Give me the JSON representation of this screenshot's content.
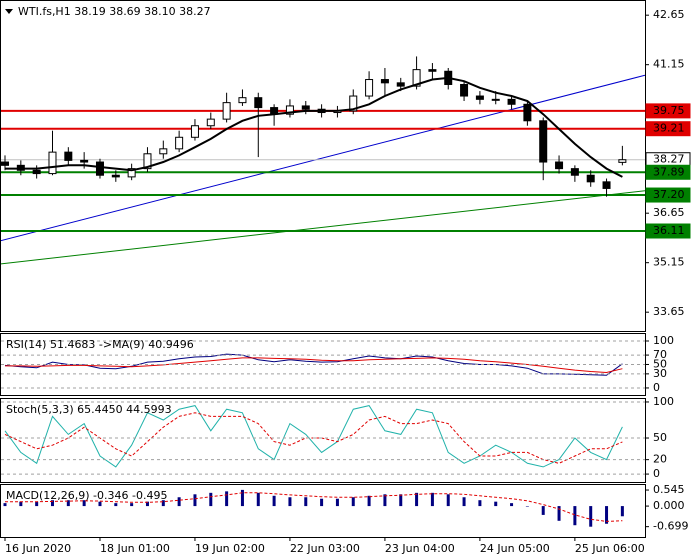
{
  "chart_data": [
    {
      "type": "candlestick",
      "title": "WTI.fs,H1  38.19 38.69 38.10 38.27",
      "categories": [
        "16 Jun 2020",
        null,
        null,
        null,
        null,
        null,
        "18 Jun 01:00",
        null,
        null,
        null,
        null,
        null,
        "19 Jun 02:00",
        null,
        null,
        null,
        null,
        null,
        "22 Jun 03:00",
        null,
        null,
        null,
        null,
        null,
        "23 Jun 04:00",
        null,
        null,
        null,
        null,
        null,
        "24 Jun 05:00",
        null,
        null,
        null,
        null,
        null,
        "25 Jun 06:00",
        null,
        null,
        null
      ],
      "open": [
        38.2,
        38.1,
        37.95,
        37.85,
        38.5,
        38.25,
        38.2,
        37.8,
        37.75,
        38.0,
        38.45,
        38.6,
        38.95,
        39.3,
        39.5,
        40.0,
        40.15,
        39.85,
        39.65,
        39.9,
        39.8,
        39.7,
        39.75,
        40.2,
        40.7,
        40.6,
        40.5,
        41.0,
        40.95,
        40.55,
        40.2,
        40.1,
        40.1,
        39.95,
        39.45,
        38.2,
        38.0,
        37.8,
        37.6,
        38.19
      ],
      "high": [
        38.4,
        38.25,
        38.1,
        39.15,
        38.65,
        38.5,
        38.3,
        37.95,
        38.15,
        38.65,
        38.85,
        39.15,
        39.5,
        39.7,
        40.3,
        40.4,
        40.3,
        39.95,
        40.1,
        40.05,
        39.95,
        39.9,
        40.4,
        40.95,
        41.05,
        40.75,
        41.4,
        41.2,
        41.05,
        40.65,
        40.35,
        40.35,
        40.2,
        40.05,
        39.55,
        38.4,
        38.1,
        37.95,
        37.7,
        38.69
      ],
      "low": [
        37.95,
        37.8,
        37.7,
        37.8,
        38.1,
        38.0,
        37.7,
        37.6,
        37.65,
        37.9,
        38.3,
        38.5,
        38.85,
        39.2,
        39.4,
        39.9,
        38.35,
        39.3,
        39.55,
        39.65,
        39.55,
        39.55,
        39.65,
        40.1,
        40.2,
        40.35,
        40.4,
        40.7,
        40.4,
        40.05,
        39.95,
        39.95,
        39.8,
        39.3,
        37.65,
        37.85,
        37.6,
        37.45,
        37.15,
        38.1
      ],
      "close": [
        38.1,
        37.95,
        37.85,
        38.5,
        38.25,
        38.2,
        37.8,
        37.75,
        38.0,
        38.45,
        38.6,
        38.95,
        39.3,
        39.5,
        40.0,
        40.15,
        39.85,
        39.65,
        39.9,
        39.8,
        39.7,
        39.75,
        40.2,
        40.7,
        40.6,
        40.5,
        41.0,
        40.95,
        40.55,
        40.2,
        40.1,
        40.1,
        39.95,
        39.45,
        38.2,
        38.0,
        37.8,
        37.6,
        37.4,
        38.27
      ],
      "ma": [
        38.0,
        38.0,
        38.0,
        38.05,
        38.1,
        38.1,
        38.05,
        38.0,
        37.95,
        38.05,
        38.2,
        38.4,
        38.65,
        38.9,
        39.2,
        39.45,
        39.6,
        39.65,
        39.7,
        39.75,
        39.75,
        39.75,
        39.8,
        39.95,
        40.2,
        40.4,
        40.55,
        40.7,
        40.75,
        40.65,
        40.45,
        40.3,
        40.2,
        40.05,
        39.65,
        39.2,
        38.75,
        38.35,
        38.0,
        37.75
      ],
      "ma_color": "#000000",
      "ylim": [
        33.08,
        43.11
      ],
      "yticks": [
        42.65,
        41.15,
        36.65,
        35.15,
        33.65
      ],
      "levels": [
        {
          "value": 39.75,
          "label": "39.75",
          "color": "#e00000"
        },
        {
          "value": 39.21,
          "label": "39.21",
          "color": "#e00000"
        },
        {
          "value": 38.27,
          "label": "38.27",
          "color": "#c0c0c0"
        },
        {
          "value": 37.89,
          "label": "37.89",
          "color": "#008000"
        },
        {
          "value": 37.2,
          "label": "37.20",
          "color": "#008000"
        },
        {
          "value": 36.11,
          "label": "36.11",
          "color": "#008000"
        }
      ],
      "trendlines": [
        {
          "x": [
            -0.32,
            40.43
          ],
          "y": [
            35.81,
            40.83
          ],
          "color": "#0000cc"
        },
        {
          "x": [
            -0.32,
            40.43
          ],
          "y": [
            35.11,
            37.33
          ],
          "color": "#008000"
        }
      ]
    },
    {
      "type": "line",
      "title": "RSI(14) 51.4683 ->MA(9) 40.9496",
      "series": [
        {
          "color": "#000080",
          "values": [
            48,
            45,
            43,
            55,
            50,
            49,
            42,
            41,
            46,
            55,
            57,
            62,
            66,
            67,
            72,
            70,
            60,
            56,
            60,
            57,
            55,
            56,
            62,
            68,
            64,
            62,
            68,
            66,
            58,
            52,
            50,
            50,
            47,
            42,
            30,
            30,
            29,
            28,
            27,
            51.4683
          ]
        },
        {
          "color": "#e00000",
          "values": [
            47,
            47,
            46,
            47,
            48,
            48,
            47,
            46,
            45,
            47,
            49,
            52,
            55,
            58,
            61,
            64,
            64,
            63,
            62,
            61,
            59,
            58,
            58,
            60,
            61,
            62,
            63,
            64,
            63,
            61,
            58,
            56,
            53,
            50,
            46,
            42,
            38,
            35,
            33,
            40.9496
          ]
        }
      ],
      "ylim": [
        -15,
        117
      ],
      "yticks": [
        100,
        70,
        50,
        30,
        0
      ]
    },
    {
      "type": "line",
      "title": "Stoch(5,3,3) 65.4450 44.5993",
      "series": [
        {
          "color": "#20b2aa",
          "values": [
            60,
            30,
            15,
            80,
            55,
            70,
            25,
            10,
            40,
            85,
            75,
            90,
            95,
            60,
            90,
            85,
            35,
            20,
            70,
            55,
            30,
            45,
            90,
            95,
            60,
            55,
            90,
            85,
            30,
            15,
            25,
            40,
            30,
            15,
            10,
            20,
            50,
            30,
            20,
            65.445
          ]
        },
        {
          "color": "#e00000",
          "dashed": true,
          "values": [
            55,
            45,
            35,
            40,
            50,
            65,
            50,
            35,
            25,
            45,
            65,
            80,
            85,
            80,
            80,
            80,
            70,
            45,
            40,
            50,
            50,
            45,
            55,
            75,
            80,
            70,
            70,
            75,
            70,
            45,
            25,
            25,
            30,
            30,
            20,
            15,
            25,
            35,
            35,
            44.5993
          ]
        }
      ],
      "ylim": [
        -11,
        105.5
      ],
      "yticks": [
        100,
        50,
        20,
        0
      ]
    },
    {
      "type": "bar",
      "title": "MACD(12,26,9) -0.346 -0.495",
      "values": [
        0.1,
        0.15,
        0.15,
        0.2,
        0.2,
        0.2,
        0.15,
        0.1,
        0.1,
        0.15,
        0.2,
        0.3,
        0.4,
        0.45,
        0.5,
        0.55,
        0.45,
        0.35,
        0.3,
        0.3,
        0.25,
        0.25,
        0.3,
        0.35,
        0.4,
        0.4,
        0.45,
        0.45,
        0.4,
        0.3,
        0.2,
        0.15,
        0.1,
        0.0,
        -0.3,
        -0.5,
        -0.65,
        -0.7,
        -0.6,
        -0.346
      ],
      "color": "#000080",
      "signal": [
        0.15,
        0.15,
        0.15,
        0.16,
        0.17,
        0.18,
        0.17,
        0.15,
        0.13,
        0.13,
        0.15,
        0.2,
        0.25,
        0.32,
        0.38,
        0.45,
        0.45,
        0.42,
        0.38,
        0.35,
        0.32,
        0.3,
        0.3,
        0.32,
        0.35,
        0.37,
        0.4,
        0.42,
        0.42,
        0.4,
        0.35,
        0.3,
        0.25,
        0.18,
        0.05,
        -0.1,
        -0.3,
        -0.45,
        -0.52,
        -0.495
      ],
      "signal_color": "#e00000",
      "ylim": [
        -1.05,
        0.75
      ],
      "yticks": [
        0.545,
        {
          "value": 0,
          "label": "0.000"
        },
        -0.699
      ]
    }
  ]
}
